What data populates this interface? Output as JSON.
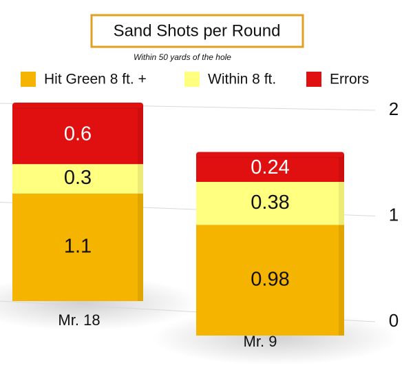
{
  "chart_data": {
    "type": "bar",
    "stacked": true,
    "title": "Sand Shots per Round",
    "subtitle": "Within 50 yards of the hole",
    "categories": [
      "Mr. 18",
      "Mr. 9"
    ],
    "series": [
      {
        "name": "Hit Green 8 ft. +",
        "color": "#f5b400",
        "values": [
          1.1,
          0.98
        ]
      },
      {
        "name": "Within 8 ft.",
        "color": "#ffff80",
        "values": [
          0.3,
          0.38
        ]
      },
      {
        "name": "Errors",
        "color": "#e01010",
        "values": [
          0.6,
          0.24
        ]
      }
    ],
    "ylim": [
      0,
      2
    ],
    "yticks": [
      0,
      1,
      2
    ],
    "grid": true
  }
}
